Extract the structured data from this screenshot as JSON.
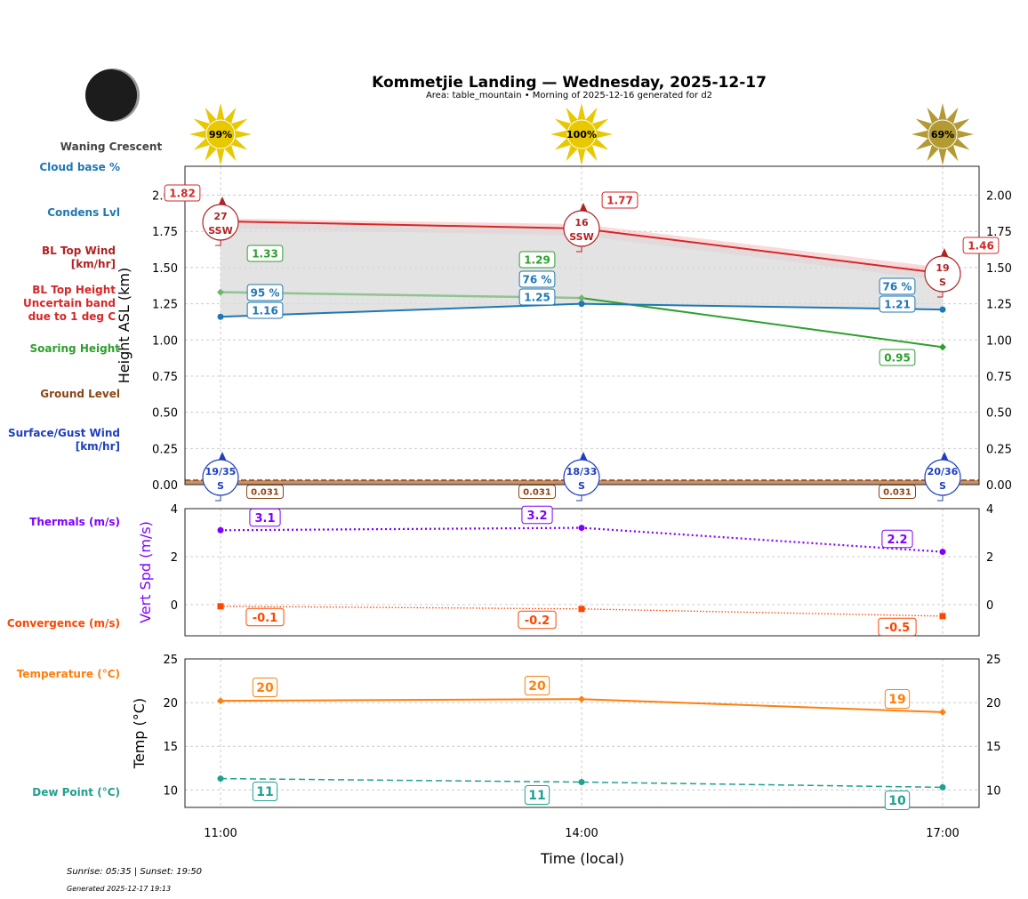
{
  "header": {
    "title": "Kommetjie Landing — Wednesday, 2025-12-17",
    "subtitle": "Area: table_mountain • Morning of 2025-12-16 generated for d2"
  },
  "moon": {
    "phase": "Waning Crescent",
    "icon": "moon-icon"
  },
  "side_labels": [
    {
      "text": "Cloud base %",
      "color": "#1f77b4"
    },
    {
      "text": "Condens Lvl",
      "color": "#1f77b4"
    },
    {
      "text": "BL Top Wind\n[km/hr]",
      "color": "#b22222"
    },
    {
      "text": "BL Top Height\nUncertain band\ndue to 1 deg C",
      "color": "#d62728"
    },
    {
      "text": "Soaring Height",
      "color": "#2ca02c"
    },
    {
      "text": "Ground Level",
      "color": "#8b4513"
    },
    {
      "text": "Surface/Gust Wind\n[km/hr]",
      "color": "#1f3fbf"
    },
    {
      "text": "Thermals (m/s)",
      "color": "#7f00ff"
    },
    {
      "text": "Convergence (m/s)",
      "color": "#ff4500"
    },
    {
      "text": "Temperature (°C)",
      "color": "#ff7f0e"
    },
    {
      "text": "Dew Point (°C)",
      "color": "#20a090"
    }
  ],
  "footer": {
    "sun": "Sunrise: 05:35 | Sunset: 19:50",
    "generated": "Generated 2025-12-17 19:13"
  },
  "chart_data": [
    {
      "type": "line",
      "ylabel": "Height ASL (km)",
      "ylim": [
        0,
        2.2
      ],
      "yticks": [
        "0.00",
        "0.25",
        "0.50",
        "0.75",
        "1.00",
        "1.25",
        "1.50",
        "1.75",
        "2.00"
      ],
      "x": [
        "11:00",
        "14:00",
        "17:00"
      ],
      "grid": true,
      "sun_cloud_pct": [
        "99%",
        "100%",
        "69%"
      ],
      "series": [
        {
          "key": "bl_top",
          "values": [
            1.82,
            1.77,
            1.46
          ],
          "labels": [
            "1.82",
            "1.77",
            "1.46"
          ],
          "color": "#d62728"
        },
        {
          "key": "bl_top_band",
          "values": [
            1.84,
            1.8,
            1.5
          ],
          "color": "#f4b6b6"
        },
        {
          "key": "soaring",
          "values": [
            1.33,
            1.29,
            0.95
          ],
          "labels": [
            "1.33",
            "1.29",
            "0.95"
          ],
          "color": "#2ca02c"
        },
        {
          "key": "condens",
          "values": [
            1.16,
            1.25,
            1.21
          ],
          "labels": [
            "1.16",
            "1.25",
            "1.21"
          ],
          "color": "#1f77b4"
        },
        {
          "key": "cloud_pct",
          "labels": [
            "95 %",
            "76 %",
            "76 %"
          ],
          "color": "#1f77b4"
        },
        {
          "key": "ground",
          "values": [
            0.031,
            0.031,
            0.031
          ],
          "labels": [
            "0.031",
            "0.031",
            "0.031"
          ],
          "color": "#8b4513"
        }
      ],
      "bl_wind": [
        {
          "speed": "27",
          "dir": "SSW"
        },
        {
          "speed": "16",
          "dir": "SSW"
        },
        {
          "speed": "19",
          "dir": "S"
        }
      ],
      "surface_wind": [
        {
          "speed": "19/35",
          "dir": "S"
        },
        {
          "speed": "18/33",
          "dir": "S"
        },
        {
          "speed": "20/36",
          "dir": "S"
        }
      ]
    },
    {
      "type": "line",
      "ylabel": "Vert Spd (m/s)",
      "ylim": [
        -1.3,
        4
      ],
      "yticks": [
        "0",
        "2",
        "4"
      ],
      "x": [
        "11:00",
        "14:00",
        "17:00"
      ],
      "series": [
        {
          "key": "thermals",
          "values": [
            3.1,
            3.2,
            2.2
          ],
          "labels": [
            "3.1",
            "3.2",
            "2.2"
          ],
          "color": "#7f00ff"
        },
        {
          "key": "convergence",
          "values": [
            -0.07,
            -0.18,
            -0.48
          ],
          "labels": [
            "-0.1",
            "-0.2",
            "-0.5"
          ],
          "color": "#ff4500"
        }
      ]
    },
    {
      "type": "line",
      "ylabel": "Temp (°C)",
      "xlabel": "Time (local)",
      "ylim": [
        8,
        25
      ],
      "yticks": [
        "10",
        "15",
        "20",
        "25"
      ],
      "x": [
        "11:00",
        "14:00",
        "17:00"
      ],
      "series": [
        {
          "key": "temperature",
          "values": [
            20.2,
            20.4,
            18.9
          ],
          "labels": [
            "20",
            "20",
            "19"
          ],
          "color": "#ff7f0e"
        },
        {
          "key": "dewpoint",
          "values": [
            11.3,
            10.9,
            10.3
          ],
          "labels": [
            "11",
            "11",
            "10"
          ],
          "color": "#20a090"
        }
      ]
    }
  ]
}
